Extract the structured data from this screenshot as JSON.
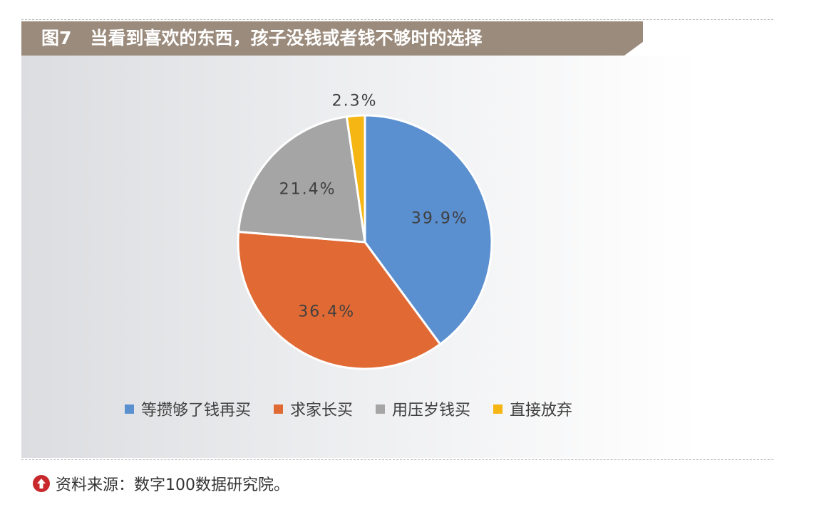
{
  "header": {
    "figure_no": "图7",
    "title": "当看到喜欢的东西，孩子没钱或者钱不够时的选择"
  },
  "chart_data": {
    "type": "pie",
    "title": "当看到喜欢的东西，孩子没钱或者钱不够时的选择",
    "start_angle_deg": 0,
    "direction": "clockwise",
    "legend_position": "bottom",
    "slices": [
      {
        "label": "等攒够了钱再买",
        "value": 39.9,
        "display": "39.9%",
        "color": "#5a8fd0"
      },
      {
        "label": "求家长买",
        "value": 36.4,
        "display": "36.4%",
        "color": "#e16a34"
      },
      {
        "label": "用压岁钱买",
        "value": 21.4,
        "display": "21.4%",
        "color": "#a5a5a5"
      },
      {
        "label": "直接放弃",
        "value": 2.3,
        "display": "2.3%",
        "color": "#f5b513"
      }
    ]
  },
  "source": {
    "text": "资料来源：数字100数据研究院。",
    "icon": "up-arrow-circle-icon",
    "icon_color": "#c8282b"
  }
}
